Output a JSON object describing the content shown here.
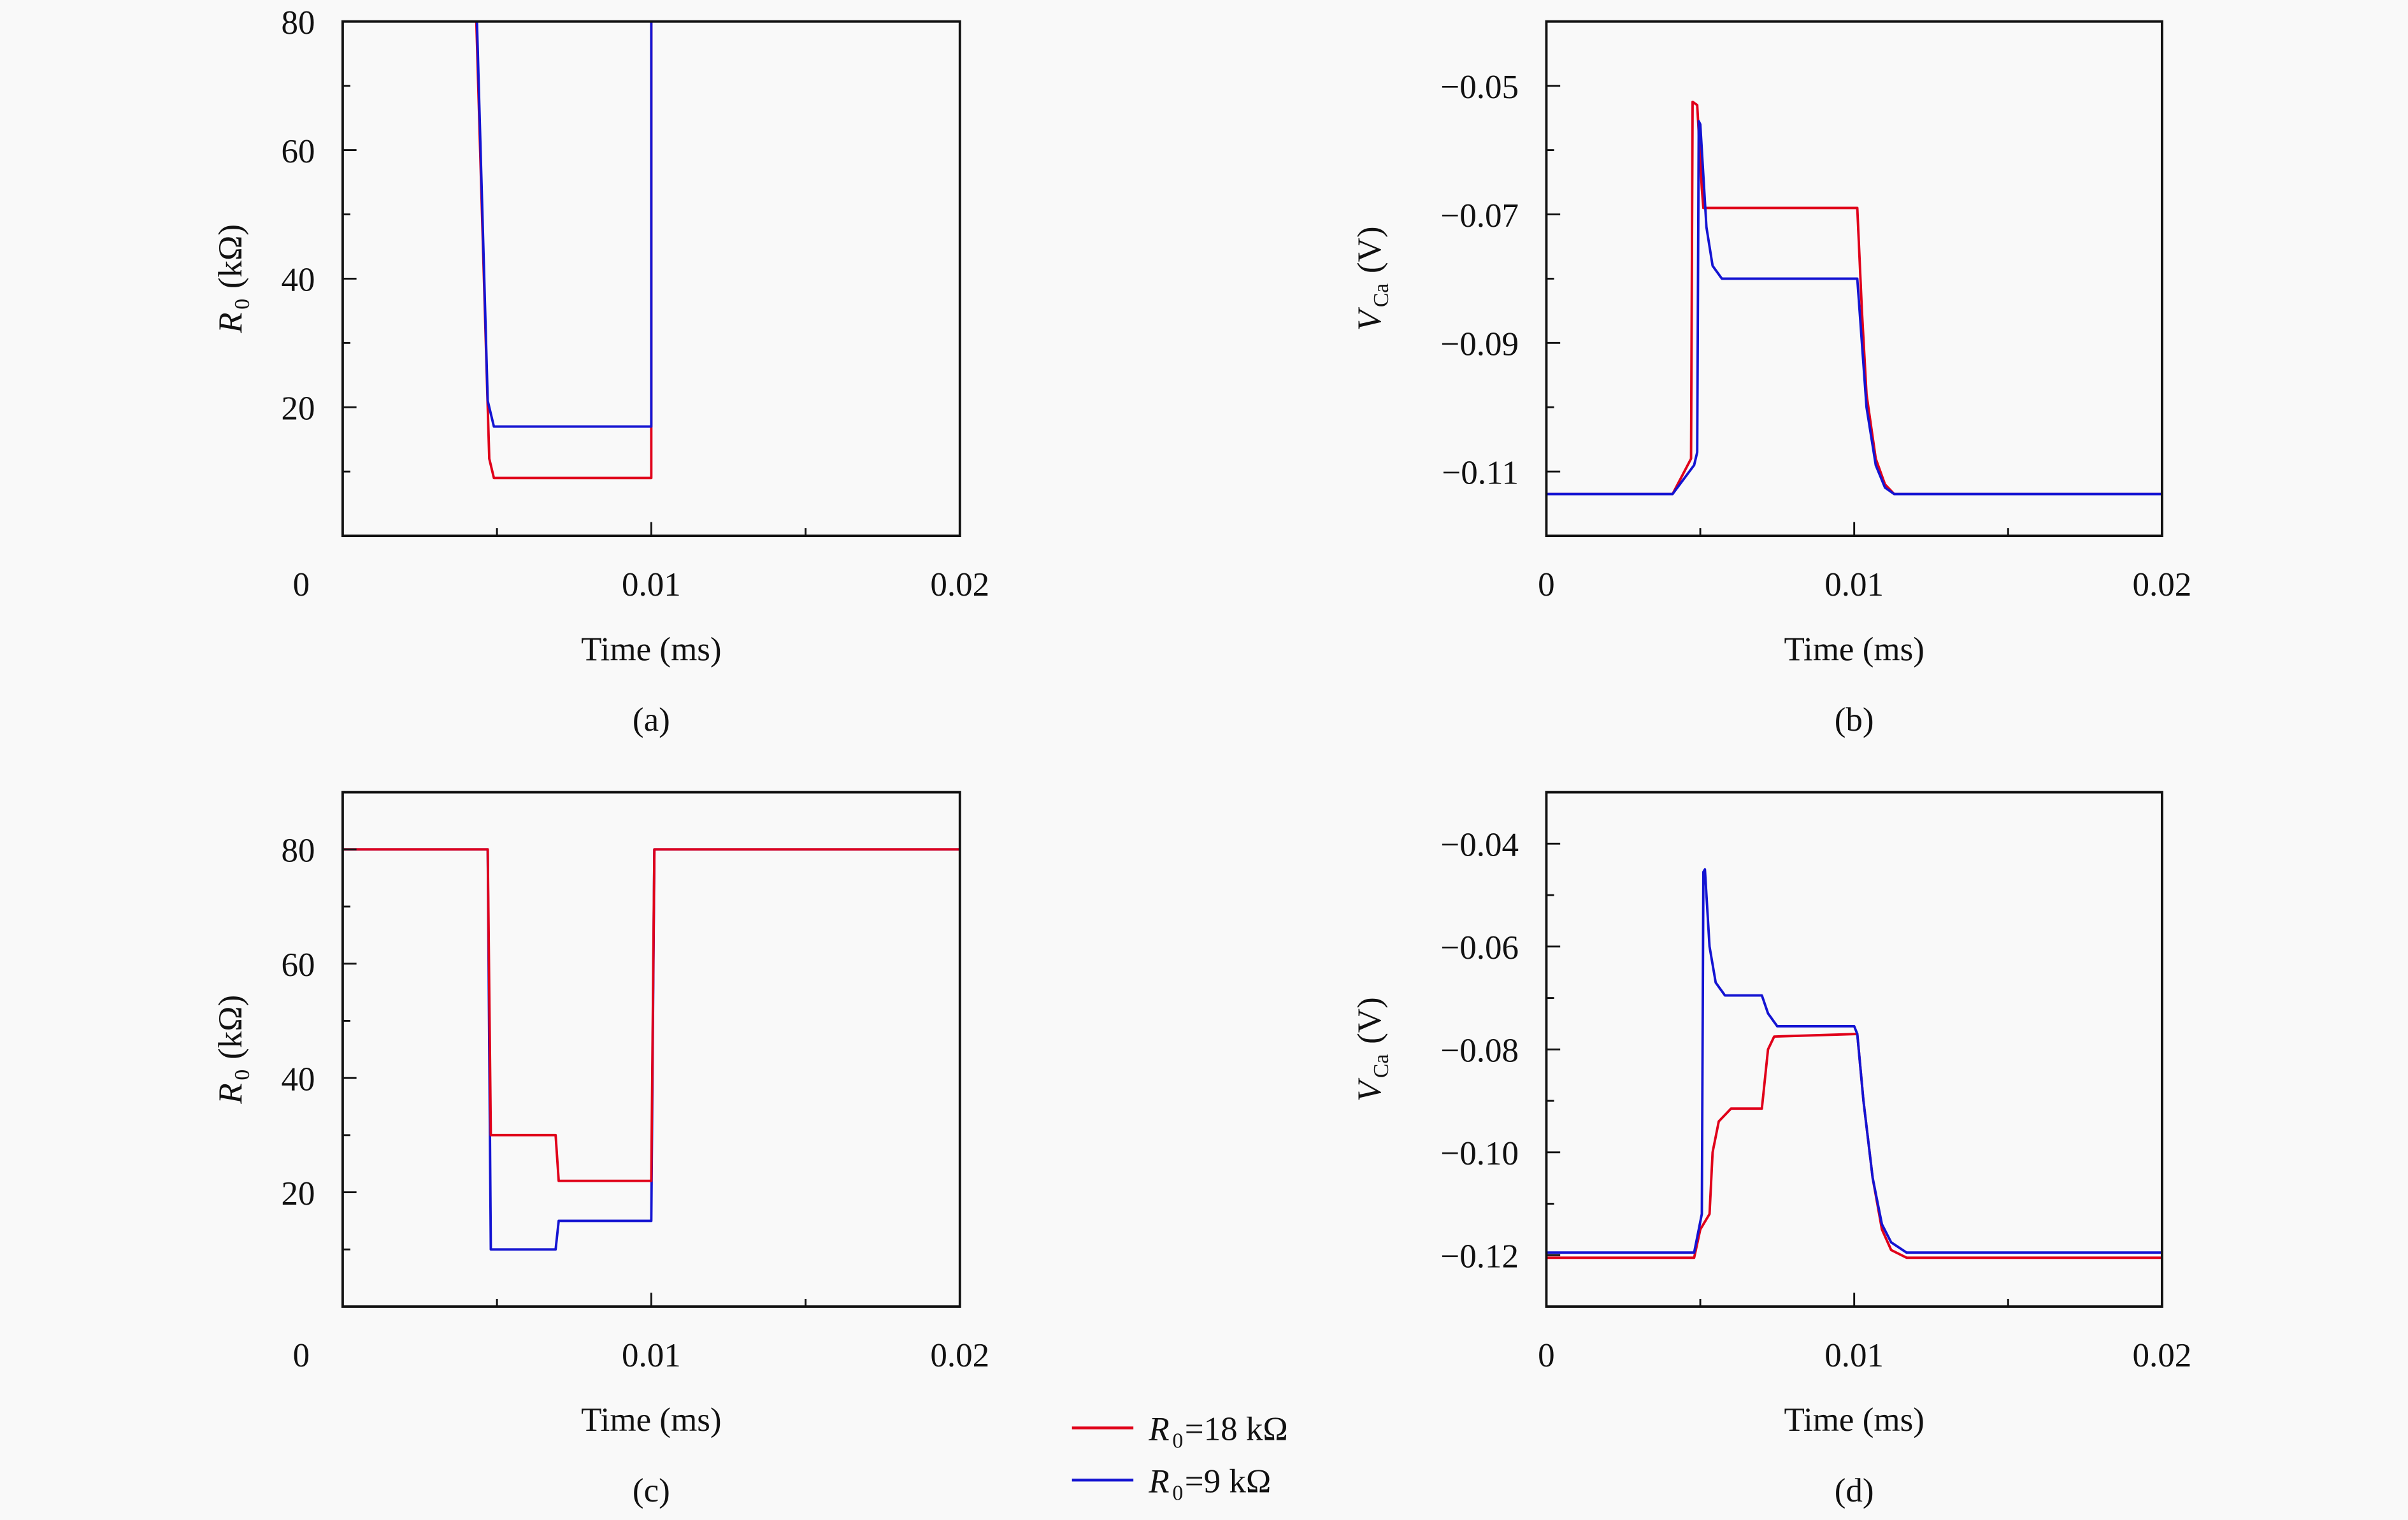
{
  "colors": {
    "r18": "#e0001a",
    "r9": "#1414d2"
  },
  "legend": [
    {
      "key": "r18",
      "var": "R",
      "sub": "0",
      "text": "=18 kΩ"
    },
    {
      "key": "r9",
      "var": "R",
      "sub": "0",
      "text": "=9 kΩ"
    }
  ],
  "chart_data": [
    {
      "panel": "(a)",
      "type": "line",
      "xlabel": "Time (ms)",
      "ylabel": {
        "var": "R",
        "sub": "0",
        "unit": "(kΩ)"
      },
      "xlim": [
        0,
        0.02
      ],
      "ylim": [
        0,
        80
      ],
      "xticks": [
        0,
        0.01,
        0.02
      ],
      "xtick_labels": [
        "0",
        "0.01",
        "0.02"
      ],
      "xminor": [
        0.005,
        0.015
      ],
      "yticks": [
        20,
        40,
        60,
        80
      ],
      "ytick_labels": [
        "20",
        "40",
        "60",
        "80"
      ],
      "yminor": [
        10,
        30,
        50,
        70
      ],
      "series": [
        {
          "key": "r18",
          "points": [
            [
              0.0043,
              85
            ],
            [
              0.0047,
              20
            ],
            [
              0.00475,
              12
            ],
            [
              0.0049,
              9
            ],
            [
              0.01,
              9
            ],
            [
              0.01,
              80
            ],
            [
              0.01,
              85
            ]
          ]
        },
        {
          "key": "r9",
          "points": [
            [
              0.0043,
              85
            ],
            [
              0.00435,
              80
            ],
            [
              0.0047,
              21
            ],
            [
              0.0049,
              17
            ],
            [
              0.01,
              17
            ],
            [
              0.01,
              80
            ],
            [
              0.01,
              85
            ]
          ]
        }
      ]
    },
    {
      "panel": "(b)",
      "type": "line",
      "xlabel": "Time (ms)",
      "ylabel": {
        "var": "V",
        "sub": "Ca",
        "unit": "(V)"
      },
      "xlim": [
        0,
        0.02
      ],
      "ylim": [
        -0.12,
        -0.04
      ],
      "xticks": [
        0,
        0.01,
        0.02
      ],
      "xtick_labels": [
        "0",
        "0.01",
        "0.02"
      ],
      "xminor": [
        0.005,
        0.015
      ],
      "yticks": [
        -0.05,
        -0.07,
        -0.09,
        -0.11
      ],
      "ytick_labels": [
        "−0.05",
        "−0.07",
        "−0.09",
        "−0.11"
      ],
      "yminor": [
        -0.06,
        -0.08,
        -0.1
      ],
      "series": [
        {
          "key": "r18",
          "points": [
            [
              0,
              -0.1135
            ],
            [
              0.0041,
              -0.1135
            ],
            [
              0.0047,
              -0.108
            ],
            [
              0.00475,
              -0.0525
            ],
            [
              0.0049,
              -0.053
            ],
            [
              0.00505,
              -0.066
            ],
            [
              0.0051,
              -0.069
            ],
            [
              0.0101,
              -0.069
            ],
            [
              0.01025,
              -0.085
            ],
            [
              0.0104,
              -0.098
            ],
            [
              0.0107,
              -0.108
            ],
            [
              0.011,
              -0.112
            ],
            [
              0.0113,
              -0.1135
            ],
            [
              0.02,
              -0.1135
            ]
          ]
        },
        {
          "key": "r9",
          "points": [
            [
              0,
              -0.1135
            ],
            [
              0.0041,
              -0.1135
            ],
            [
              0.0048,
              -0.109
            ],
            [
              0.0049,
              -0.107
            ],
            [
              0.00495,
              -0.0555
            ],
            [
              0.005,
              -0.056
            ],
            [
              0.0052,
              -0.072
            ],
            [
              0.0054,
              -0.078
            ],
            [
              0.0057,
              -0.08
            ],
            [
              0.0101,
              -0.08
            ],
            [
              0.01025,
              -0.09
            ],
            [
              0.0104,
              -0.1
            ],
            [
              0.0107,
              -0.109
            ],
            [
              0.011,
              -0.1125
            ],
            [
              0.0113,
              -0.1135
            ],
            [
              0.02,
              -0.1135
            ]
          ]
        }
      ]
    },
    {
      "panel": "(c)",
      "type": "line",
      "xlabel": "Time (ms)",
      "ylabel": {
        "var": "R",
        "sub": "0",
        "unit": "(kΩ)"
      },
      "xlim": [
        0,
        0.02
      ],
      "ylim": [
        0,
        90
      ],
      "xticks": [
        0,
        0.01,
        0.02
      ],
      "xtick_labels": [
        "0",
        "0.01",
        "0.02"
      ],
      "xminor": [
        0.005,
        0.015
      ],
      "yticks": [
        20,
        40,
        60,
        80
      ],
      "ytick_labels": [
        "20",
        "40",
        "60",
        "80"
      ],
      "yminor": [
        10,
        30,
        50,
        70
      ],
      "series": [
        {
          "key": "r9",
          "points": [
            [
              0,
              80
            ],
            [
              0.0047,
              80
            ],
            [
              0.0048,
              10
            ],
            [
              0.0069,
              10
            ],
            [
              0.007,
              15
            ],
            [
              0.01,
              15
            ],
            [
              0.0101,
              80
            ],
            [
              0.02,
              80
            ]
          ]
        },
        {
          "key": "r18",
          "points": [
            [
              0,
              80
            ],
            [
              0.0047,
              80
            ],
            [
              0.0048,
              30
            ],
            [
              0.0069,
              30
            ],
            [
              0.007,
              22
            ],
            [
              0.01,
              22
            ],
            [
              0.0101,
              80
            ],
            [
              0.02,
              80
            ]
          ]
        }
      ]
    },
    {
      "panel": "(d)",
      "type": "line",
      "xlabel": "Time (ms)",
      "ylabel": {
        "var": "V",
        "sub": "Ca",
        "unit": "(V)"
      },
      "xlim": [
        0,
        0.02
      ],
      "ylim": [
        -0.13,
        -0.03
      ],
      "xticks": [
        0,
        0.01,
        0.02
      ],
      "xtick_labels": [
        "0",
        "0.01",
        "0.02"
      ],
      "xminor": [
        0.005,
        0.015
      ],
      "yticks": [
        -0.04,
        -0.06,
        -0.08,
        -0.1,
        -0.12
      ],
      "ytick_labels": [
        "−0.04",
        "−0.06",
        "−0.08",
        "−0.10",
        "−0.12"
      ],
      "yminor": [
        -0.05,
        -0.07,
        -0.09,
        -0.11
      ],
      "series": [
        {
          "key": "r18",
          "points": [
            [
              0,
              -0.1205
            ],
            [
              0.0048,
              -0.1205
            ],
            [
              0.005,
              -0.115
            ],
            [
              0.0053,
              -0.112
            ],
            [
              0.0054,
              -0.1
            ],
            [
              0.0056,
              -0.094
            ],
            [
              0.006,
              -0.0915
            ],
            [
              0.007,
              -0.0915
            ],
            [
              0.0072,
              -0.08
            ],
            [
              0.0074,
              -0.0775
            ],
            [
              0.0101,
              -0.077
            ],
            [
              0.0103,
              -0.09
            ],
            [
              0.0106,
              -0.105
            ],
            [
              0.0109,
              -0.115
            ],
            [
              0.0112,
              -0.119
            ],
            [
              0.0117,
              -0.1205
            ],
            [
              0.02,
              -0.1205
            ]
          ]
        },
        {
          "key": "r9",
          "points": [
            [
              0,
              -0.1195
            ],
            [
              0.0048,
              -0.1195
            ],
            [
              0.00505,
              -0.112
            ],
            [
              0.0051,
              -0.0455
            ],
            [
              0.00515,
              -0.045
            ],
            [
              0.0053,
              -0.06
            ],
            [
              0.0055,
              -0.067
            ],
            [
              0.0058,
              -0.0695
            ],
            [
              0.007,
              -0.0695
            ],
            [
              0.0072,
              -0.073
            ],
            [
              0.0075,
              -0.0755
            ],
            [
              0.01,
              -0.0755
            ],
            [
              0.0101,
              -0.077
            ],
            [
              0.0103,
              -0.09
            ],
            [
              0.0106,
              -0.105
            ],
            [
              0.0109,
              -0.114
            ],
            [
              0.0112,
              -0.1175
            ],
            [
              0.0117,
              -0.1195
            ],
            [
              0.02,
              -0.1195
            ]
          ]
        }
      ]
    }
  ]
}
